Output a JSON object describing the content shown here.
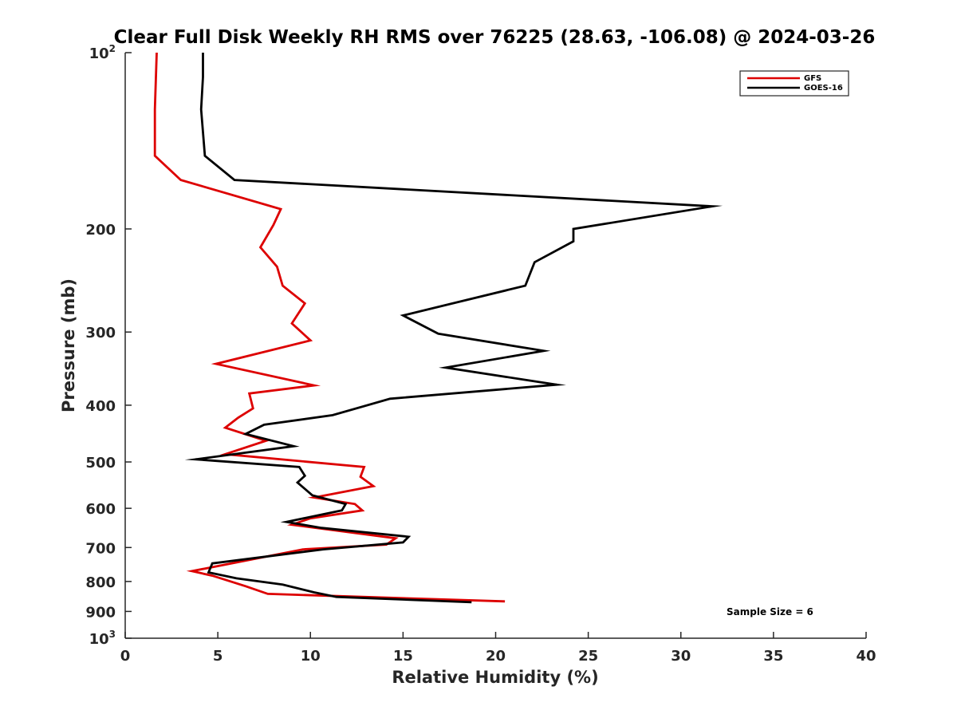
{
  "chart_data": {
    "type": "line",
    "title": "Clear Full Disk Weekly RH RMS over 76225 (28.63, -106.08) @ 2024-03-26",
    "xlabel": "Relative Humidity (%)",
    "ylabel": "Pressure (mb)",
    "xlim": [
      0,
      40
    ],
    "ylim": [
      100,
      1000
    ],
    "yscale": "log",
    "y_reversed": true,
    "grid": false,
    "legend_position": "top-right",
    "x_ticks": [
      "0",
      "5",
      "10",
      "15",
      "20",
      "25",
      "30",
      "35",
      "40"
    ],
    "y_ticks": [
      {
        "value": 100,
        "base": "10",
        "exp": "2"
      },
      {
        "value": 200,
        "label": "200"
      },
      {
        "value": 300,
        "label": "300"
      },
      {
        "value": 400,
        "label": "400"
      },
      {
        "value": 500,
        "label": "500"
      },
      {
        "value": 600,
        "label": "600"
      },
      {
        "value": 700,
        "label": "700"
      },
      {
        "value": 800,
        "label": "800"
      },
      {
        "value": 900,
        "label": "900"
      },
      {
        "value": 1000,
        "base": "10",
        "exp": "3"
      }
    ],
    "annotation": "Sample Size = 6",
    "series": [
      {
        "name": "GFS",
        "color": "#dd0000",
        "x": [
          1.7,
          1.6,
          1.6,
          3.0,
          8.4,
          8.0,
          7.3,
          8.2,
          8.5,
          9.7,
          9.0,
          10.0,
          4.9,
          10.2,
          6.7,
          6.9,
          6.1,
          5.4,
          7.6,
          5.4,
          12.9,
          12.7,
          13.4,
          10.2,
          12.4,
          12.8,
          10.0,
          9.0,
          14.6,
          14.1,
          9.6,
          3.6,
          4.7,
          6.5,
          7.7,
          20.5
        ],
        "y": [
          100,
          125,
          150,
          165,
          185,
          197,
          215,
          232,
          250,
          268,
          290,
          310,
          340,
          370,
          382,
          405,
          420,
          437,
          460,
          485,
          510,
          530,
          550,
          575,
          590,
          605,
          624,
          640,
          675,
          692,
          705,
          768,
          782,
          815,
          840,
          865
        ]
      },
      {
        "name": "GOES-16",
        "color": "#000000",
        "x": [
          4.2,
          4.2,
          4.1,
          4.3,
          5.9,
          31.7,
          24.2,
          24.2,
          22.1,
          21.6,
          15.0,
          16.9,
          22.6,
          17.3,
          23.3,
          14.3,
          11.2,
          7.5,
          6.5,
          9.1,
          3.8,
          9.4,
          9.7,
          9.3,
          10.1,
          11.9,
          11.7,
          8.7,
          10.6,
          15.3,
          15.0,
          10.7,
          4.7,
          4.5,
          6.0,
          8.5,
          10.2,
          11.4,
          18.7
        ],
        "y": [
          100,
          110,
          125,
          150,
          165,
          183,
          200,
          210,
          228,
          250,
          281,
          302,
          323,
          345,
          369,
          390,
          416,
          432,
          448,
          470,
          495,
          510,
          528,
          542,
          570,
          590,
          605,
          633,
          648,
          671,
          686,
          705,
          745,
          772,
          790,
          810,
          835,
          850,
          868
        ]
      }
    ]
  }
}
